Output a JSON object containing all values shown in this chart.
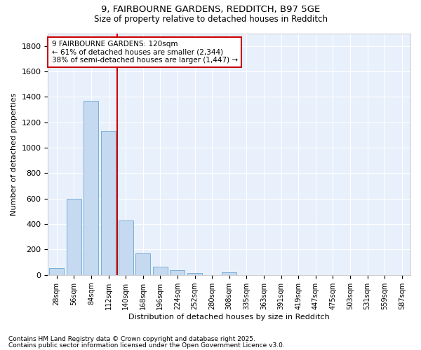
{
  "title1": "9, FAIRBOURNE GARDENS, REDDITCH, B97 5GE",
  "title2": "Size of property relative to detached houses in Redditch",
  "xlabel": "Distribution of detached houses by size in Redditch",
  "ylabel": "Number of detached properties",
  "bar_color": "#c5d9f0",
  "bar_edge_color": "#7bafd4",
  "fig_bg_color": "#ffffff",
  "plot_bg_color": "#e8f0fb",
  "grid_color": "#ffffff",
  "categories": [
    "28sqm",
    "56sqm",
    "84sqm",
    "112sqm",
    "140sqm",
    "168sqm",
    "196sqm",
    "224sqm",
    "252sqm",
    "280sqm",
    "308sqm",
    "335sqm",
    "363sqm",
    "391sqm",
    "419sqm",
    "447sqm",
    "475sqm",
    "503sqm",
    "531sqm",
    "559sqm",
    "587sqm"
  ],
  "values": [
    55,
    600,
    1370,
    1130,
    430,
    170,
    65,
    38,
    15,
    0,
    18,
    0,
    0,
    0,
    0,
    0,
    0,
    0,
    0,
    0,
    0
  ],
  "ylim": [
    0,
    1900
  ],
  "yticks": [
    0,
    200,
    400,
    600,
    800,
    1000,
    1200,
    1400,
    1600,
    1800
  ],
  "property_line_color": "#cc0000",
  "annotation_line1": "9 FAIRBOURNE GARDENS: 120sqm",
  "annotation_line2": "← 61% of detached houses are smaller (2,344)",
  "annotation_line3": "38% of semi-detached houses are larger (1,447) →",
  "annotation_box_color": "#cc0000",
  "footer1": "Contains HM Land Registry data © Crown copyright and database right 2025.",
  "footer2": "Contains public sector information licensed under the Open Government Licence v3.0."
}
